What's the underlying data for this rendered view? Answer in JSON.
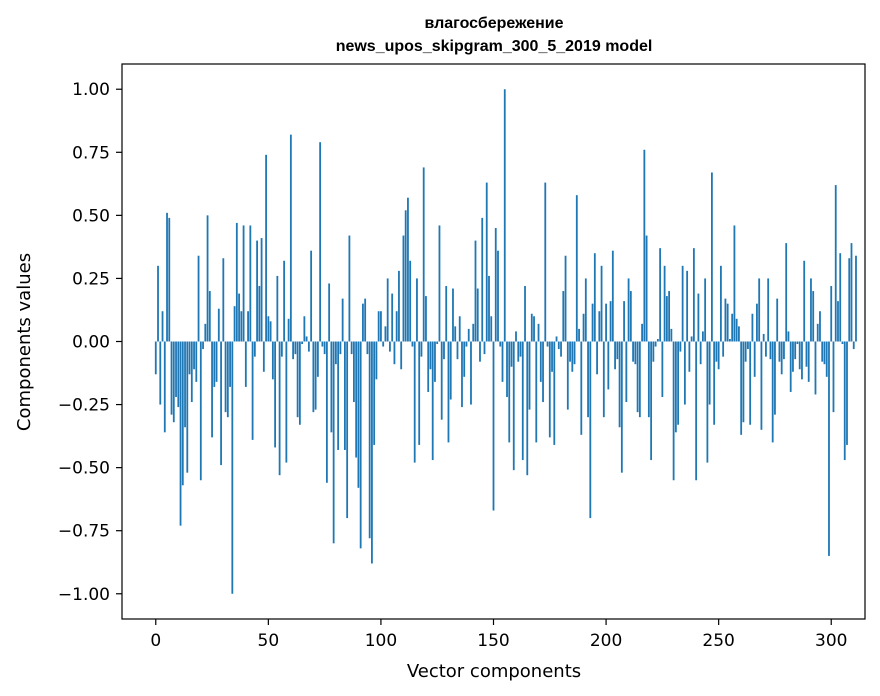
{
  "chart_data": {
    "type": "bar",
    "title": "влагосбережение",
    "subtitle": "news_upos_skipgram_300_5_2019 model",
    "xlabel": "Vector components",
    "ylabel": "Components values",
    "xlim": [
      -15,
      315
    ],
    "ylim": [
      -1.1,
      1.1
    ],
    "xticks": [
      0,
      50,
      100,
      150,
      200,
      250,
      300
    ],
    "xtick_labels": [
      "0",
      "50",
      "100",
      "150",
      "200",
      "250",
      "300"
    ],
    "yticks": [
      1.0,
      0.75,
      0.5,
      0.25,
      0.0,
      -0.25,
      -0.5,
      -0.75,
      -1.0
    ],
    "ytick_labels": [
      "1.00",
      "0.75",
      "0.50",
      "0.25",
      "0.00",
      "−0.25",
      "−0.50",
      "−0.75",
      "−1.00"
    ],
    "bar_color": "#1f77b4",
    "grid": false,
    "values": [
      -0.13,
      0.3,
      -0.25,
      0.12,
      -0.36,
      0.51,
      0.49,
      -0.29,
      -0.32,
      -0.22,
      -0.26,
      -0.73,
      -0.57,
      -0.34,
      -0.52,
      -0.13,
      -0.24,
      -0.11,
      -0.16,
      0.34,
      -0.55,
      -0.03,
      0.07,
      0.5,
      0.2,
      -0.38,
      -0.18,
      -0.16,
      0.13,
      -0.49,
      0.33,
      -0.28,
      -0.3,
      -0.18,
      -1.0,
      0.14,
      0.47,
      0.19,
      0.12,
      0.46,
      -0.18,
      0.12,
      0.46,
      -0.39,
      -0.06,
      0.4,
      0.22,
      0.41,
      -0.12,
      0.74,
      0.1,
      0.08,
      -0.15,
      -0.42,
      0.26,
      -0.53,
      -0.06,
      0.32,
      -0.48,
      0.09,
      0.82,
      -0.07,
      -0.05,
      -0.3,
      -0.33,
      -0.01,
      0.1,
      0.02,
      -0.04,
      0.36,
      -0.28,
      -0.27,
      -0.14,
      0.79,
      -0.02,
      -0.05,
      -0.56,
      0.23,
      -0.36,
      -0.8,
      -0.09,
      -0.43,
      -0.05,
      0.17,
      -0.43,
      -0.7,
      0.42,
      -0.05,
      -0.24,
      -0.46,
      -0.58,
      -0.82,
      0.15,
      0.17,
      -0.05,
      -0.78,
      -0.88,
      -0.41,
      -0.15,
      0.12,
      0.12,
      -0.02,
      0.06,
      0.25,
      -0.04,
      0.19,
      -0.09,
      0.12,
      0.28,
      -0.11,
      0.42,
      0.52,
      0.57,
      0.32,
      -0.02,
      -0.48,
      0.25,
      -0.41,
      -0.06,
      0.69,
      0.18,
      -0.2,
      -0.11,
      -0.47,
      -0.16,
      -0.01,
      0.46,
      -0.31,
      -0.07,
      0.22,
      -0.4,
      -0.23,
      0.21,
      0.06,
      -0.07,
      0.1,
      -0.26,
      -0.14,
      -0.02,
      0.05,
      -0.25,
      0.07,
      0.4,
      0.21,
      -0.08,
      0.49,
      -0.05,
      0.63,
      0.26,
      0.1,
      -0.67,
      0.45,
      0.36,
      -0.02,
      -0.16,
      1.0,
      -0.22,
      -0.4,
      -0.1,
      -0.51,
      0.04,
      -0.08,
      -0.06,
      -0.47,
      0.22,
      -0.53,
      -0.27,
      0.11,
      0.1,
      -0.4,
      0.07,
      -0.16,
      -0.24,
      0.63,
      -0.02,
      -0.38,
      -0.12,
      -0.41,
      0.02,
      -0.03,
      -0.06,
      0.2,
      0.34,
      -0.27,
      -0.08,
      -0.12,
      -0.09,
      0.58,
      0.05,
      -0.37,
      0.11,
      0.25,
      -0.3,
      -0.7,
      0.15,
      0.35,
      -0.13,
      0.12,
      0.3,
      -0.3,
      0.15,
      -0.19,
      0.16,
      0.36,
      -0.11,
      -0.07,
      -0.34,
      -0.52,
      0.16,
      -0.24,
      0.25,
      0.2,
      -0.08,
      -0.09,
      -0.28,
      -0.3,
      0.07,
      0.76,
      0.42,
      -0.3,
      -0.47,
      -0.08,
      -0.02,
      0.01,
      0.37,
      -0.22,
      0.3,
      0.18,
      0.2,
      0.05,
      -0.55,
      -0.36,
      -0.33,
      -0.04,
      0.3,
      -0.25,
      0.28,
      -0.12,
      0.02,
      0.37,
      -0.55,
      0.19,
      -0.09,
      0.04,
      0.25,
      -0.48,
      -0.25,
      0.67,
      -0.33,
      -0.08,
      -0.11,
      0.3,
      -0.06,
      0.17,
      0.15,
      0.01,
      0.11,
      0.46,
      0.09,
      0.06,
      -0.37,
      -0.32,
      -0.08,
      -0.03,
      -0.33,
      0.11,
      -0.14,
      0.15,
      0.25,
      -0.35,
      0.03,
      -0.06,
      0.25,
      -0.07,
      -0.4,
      -0.29,
      0.17,
      -0.08,
      -0.13,
      -0.07,
      0.39,
      0.04,
      -0.2,
      -0.12,
      -0.07,
      -0.01,
      -0.11,
      -0.15,
      0.32,
      -0.1,
      -0.16,
      0.25,
      0.2,
      -0.21,
      0.07,
      0.12,
      -0.08,
      -0.09,
      -0.14,
      -0.85,
      0.22,
      -0.28,
      0.62,
      0.16,
      0.35,
      -0.01,
      -0.47,
      -0.41,
      0.33,
      0.39,
      -0.03,
      0.34
    ]
  }
}
